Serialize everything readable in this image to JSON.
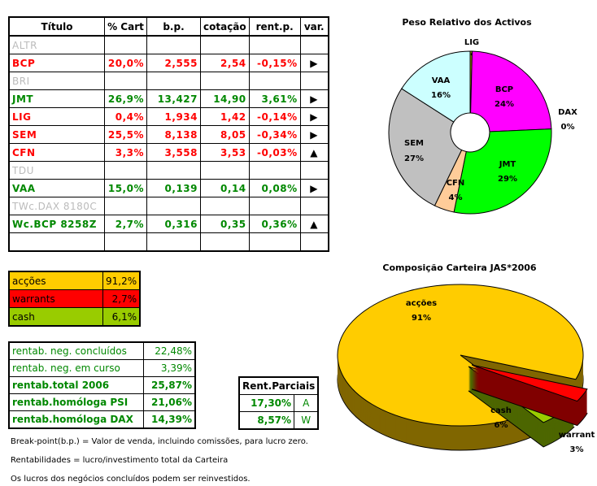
{
  "portfolio_table": {
    "headers": [
      "Título",
      "% Cart",
      "b.p.",
      "cotação",
      "rent.p.",
      "var."
    ],
    "rows": [
      {
        "name": "ALTR",
        "status": "inactive",
        "cart": "",
        "bp": "",
        "cot": "",
        "rent": "",
        "var": ""
      },
      {
        "name": "BCP",
        "status": "loss",
        "cart": "20,0%",
        "bp": "2,555",
        "cot": "2,54",
        "rent": "-0,15%",
        "var": "▶"
      },
      {
        "name": "BRI",
        "status": "inactive",
        "cart": "",
        "bp": "",
        "cot": "",
        "rent": "",
        "var": ""
      },
      {
        "name": "JMT",
        "status": "gain",
        "cart": "26,9%",
        "bp": "13,427",
        "cot": "14,90",
        "rent": "3,61%",
        "var": "▶"
      },
      {
        "name": "LIG",
        "status": "loss",
        "cart": "0,4%",
        "bp": "1,934",
        "cot": "1,42",
        "rent": "-0,14%",
        "var": "▶"
      },
      {
        "name": "SEM",
        "status": "loss",
        "cart": "25,5%",
        "bp": "8,138",
        "cot": "8,05",
        "rent": "-0,34%",
        "var": "▶"
      },
      {
        "name": "CFN",
        "status": "loss",
        "cart": "3,3%",
        "bp": "3,558",
        "cot": "3,53",
        "rent": "-0,03%",
        "var": "▲"
      },
      {
        "name": "TDU",
        "status": "inactive",
        "cart": "",
        "bp": "",
        "cot": "",
        "rent": "",
        "var": ""
      },
      {
        "name": "VAA",
        "status": "gain",
        "cart": "15,0%",
        "bp": "0,139",
        "cot": "0,14",
        "rent": "0,08%",
        "var": "▶"
      },
      {
        "name": "TWc.DAX 8180C",
        "status": "inactive",
        "cart": "",
        "bp": "",
        "cot": "",
        "rent": "",
        "var": ""
      },
      {
        "name": "Wc.BCP 8258Z",
        "status": "gain",
        "cart": "2,7%",
        "bp": "0,316",
        "cot": "0,35",
        "rent": "0,36%",
        "var": "▲"
      },
      {
        "name": "",
        "status": "inactive",
        "cart": "",
        "bp": "",
        "cot": "",
        "rent": "",
        "var": ""
      }
    ]
  },
  "allocation": [
    {
      "label": "acções",
      "value": "91,2%",
      "color": "#ffcc00"
    },
    {
      "label": "warrants",
      "value": "2,7%",
      "color": "#ff0000"
    },
    {
      "label": "cash",
      "value": "6,1%",
      "color": "#99cc00"
    }
  ],
  "returns": [
    {
      "label": "rentab. neg. concluídos",
      "value": "22,48%",
      "bold": false
    },
    {
      "label": "rentab. neg. em curso",
      "value": "3,39%",
      "bold": false
    },
    {
      "label": "rentab.total 2006",
      "value": "25,87%",
      "bold": true
    },
    {
      "label": "rentab.homóloga PSI",
      "value": "21,06%",
      "bold": true
    },
    {
      "label": "rentab.homóloga DAX",
      "value": "14,39%",
      "bold": true
    }
  ],
  "partial": {
    "title": "Rent.Parciais",
    "rows": [
      {
        "value": "17,30%",
        "code": "A"
      },
      {
        "value": "8,57%",
        "code": "W"
      }
    ]
  },
  "notes": [
    "Break-point(b.p.) = Valor de venda, incluindo comissões, para lucro zero.",
    "Rentabilidades = lucro/investimento total da Carteira",
    "Os lucros dos negócios concluídos podem ser reinvestidos."
  ],
  "colors": {
    "gain": "#008000",
    "loss": "#ff0000",
    "inactive": "#bbbbbb"
  },
  "chart_data": [
    {
      "type": "pie",
      "variant": "doughnut",
      "title": "Peso Relativo dos Activos",
      "slices": [
        {
          "label": "LIG",
          "display": "0%",
          "value": 0.4,
          "color": "#999900"
        },
        {
          "label": "BCP",
          "display": "24%",
          "value": 24,
          "color": "#ff00ff"
        },
        {
          "label": "DAX",
          "display": "0%",
          "value": 0,
          "color": "#000080"
        },
        {
          "label": "JMT",
          "display": "29%",
          "value": 29,
          "color": "#00ff00"
        },
        {
          "label": "CFN",
          "display": "4%",
          "value": 4,
          "color": "#ffcc99"
        },
        {
          "label": "SEM",
          "display": "27%",
          "value": 27,
          "color": "#c0c0c0"
        },
        {
          "label": "VAA",
          "display": "16%",
          "value": 16,
          "color": "#ccffff"
        }
      ]
    },
    {
      "type": "pie",
      "variant": "3d-exploded",
      "title": "Composição Carteira JAS*2006",
      "slices": [
        {
          "label": "warrant",
          "display": "3%",
          "value": 3,
          "color": "#ff0000",
          "side": "#800000"
        },
        {
          "label": "cash",
          "display": "6%",
          "value": 6,
          "color": "#99cc00",
          "side": "#4d6600"
        },
        {
          "label": "acções",
          "display": "91%",
          "value": 91,
          "color": "#ffcc00",
          "side": "#806600"
        }
      ]
    }
  ]
}
